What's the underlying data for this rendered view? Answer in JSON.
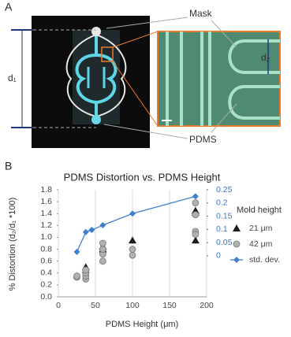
{
  "panel_a": {
    "label": "A",
    "mask_label": "Mask",
    "pdms_label": "PDMS",
    "d1_label": "d₁",
    "d2_label": "d₂"
  },
  "chart_data": {
    "type": "scatter",
    "panel_label": "B",
    "title": "PDMS Distortion vs. PDMS Height",
    "x_label": "PDMS Height (μm)",
    "y_label": "% Distortion (d₂/d₁ *100)",
    "xlim": [
      0,
      200
    ],
    "xticks": [
      0,
      50,
      100,
      150,
      200
    ],
    "ylim": [
      0,
      1.8
    ],
    "yticks": [
      {
        "value": 0,
        "label": "0.0"
      },
      0.2,
      0.4,
      0.6,
      0.8,
      {
        "value": 1,
        "label": "1.0"
      },
      1.2,
      1.4,
      1.6,
      1.8
    ],
    "y2lim": [
      -0.155,
      0.25
    ],
    "y2ticks": [
      0,
      0.05,
      0.1,
      0.15,
      0.2,
      0.25
    ],
    "grid": "x",
    "legend_title": "Mold height",
    "legend_position": "right",
    "series": [
      {
        "name": "21 μm",
        "type": "scatter",
        "marker": "triangle",
        "color": "#1e1e1e",
        "x": [
          37,
          37,
          60,
          60,
          100,
          185,
          185,
          185
        ],
        "values": [
          0.45,
          0.5,
          0.8,
          0.85,
          0.95,
          1.45,
          1.42,
          0.95
        ]
      },
      {
        "name": "42 μm",
        "type": "scatter",
        "marker": "circle",
        "color": "#b0b0b0",
        "x": [
          25,
          25,
          37,
          37,
          37,
          37,
          60,
          60,
          60,
          60,
          100,
          100,
          185,
          185,
          185,
          185
        ],
        "values": [
          0.33,
          0.35,
          0.3,
          0.35,
          0.4,
          0.45,
          0.6,
          0.72,
          0.8,
          0.9,
          0.7,
          0.8,
          1.1,
          1.05,
          1.38,
          1.58
        ]
      },
      {
        "name": "std. dev.",
        "type": "line",
        "marker": "diamond",
        "color": "#3f7fd0",
        "axis": "y2",
        "x": [
          25,
          37,
          45,
          60,
          100,
          185
        ],
        "values": [
          0.015,
          0.09,
          0.098,
          0.116,
          0.16,
          0.225
        ]
      }
    ]
  }
}
